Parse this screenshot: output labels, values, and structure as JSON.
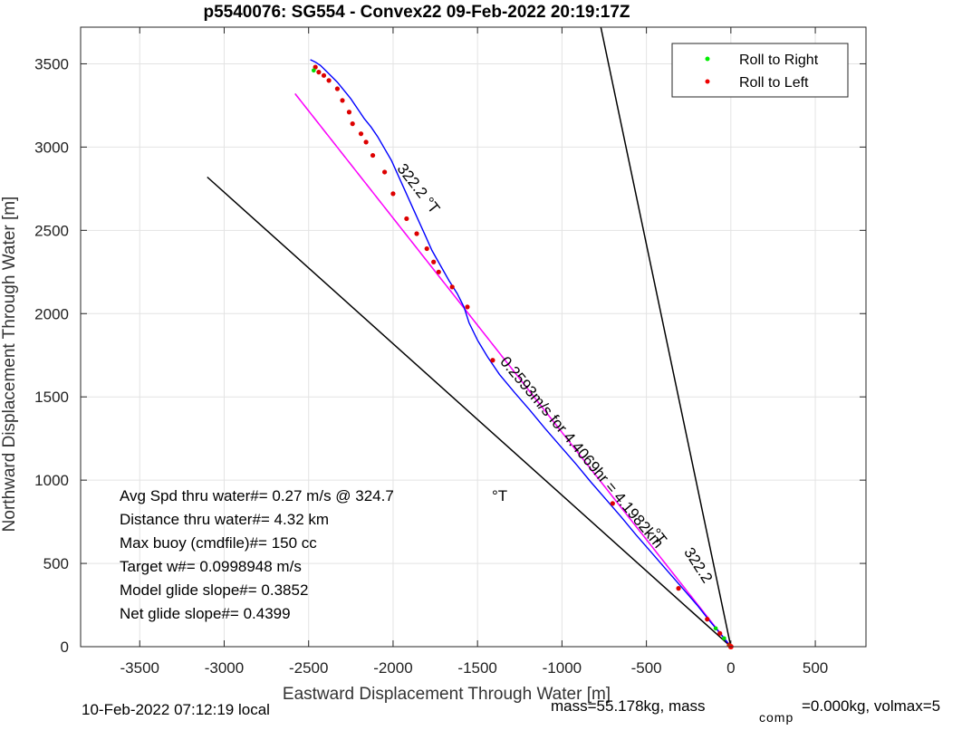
{
  "chart_data": {
    "type": "line",
    "title": "p5540076: SG554 - Convex22 09-Feb-2022 20:19:17Z",
    "xlabel": "Eastward Displacement Through Water [m]",
    "ylabel": "Northward Displacement Through Water [m]",
    "xlim": [
      -3850,
      800
    ],
    "ylim": [
      0,
      3720
    ],
    "xticks": [
      -3500,
      -3000,
      -2500,
      -2000,
      -1500,
      -1000,
      -500,
      0,
      500
    ],
    "yticks": [
      0,
      500,
      1000,
      1500,
      2000,
      2500,
      3000,
      3500
    ],
    "grid": true,
    "legend": {
      "position": "top-right",
      "entries": [
        {
          "label": "Roll to Right",
          "color": "#00ee00"
        },
        {
          "label": "Roll to Left",
          "color": "#ee0000"
        }
      ]
    },
    "series": [
      {
        "kind": "reference-line",
        "color": "#000000",
        "x": [
          0,
          -770
        ],
        "y": [
          0,
          3720
        ]
      },
      {
        "kind": "reference-line",
        "color": "#000000",
        "x": [
          0,
          -3100
        ],
        "y": [
          0,
          2820
        ]
      },
      {
        "kind": "reference-line",
        "color": "#000000",
        "dash": true,
        "x": [
          0,
          -2580
        ],
        "y": [
          0,
          3320
        ]
      },
      {
        "kind": "heading-line",
        "color": "#ff00ff",
        "x": [
          0,
          -2580
        ],
        "y": [
          0,
          3320
        ]
      },
      {
        "kind": "track",
        "color": "#0000ff",
        "x": [
          0,
          -60,
          -130,
          -200,
          -290,
          -380,
          -470,
          -560,
          -650,
          -740,
          -830,
          -920,
          -1010,
          -1100,
          -1190,
          -1280,
          -1370,
          -1440,
          -1500,
          -1550,
          -1580,
          -1620,
          -1670,
          -1720,
          -1770,
          -1810,
          -1850,
          -1890,
          -1930,
          -1970,
          -2010,
          -2050,
          -2090,
          -2130,
          -2170,
          -2210,
          -2250,
          -2290,
          -2330,
          -2370,
          -2400,
          -2430,
          -2460,
          -2490
        ],
        "y": [
          0,
          75,
          160,
          250,
          355,
          460,
          565,
          670,
          780,
          885,
          990,
          1100,
          1205,
          1310,
          1420,
          1525,
          1635,
          1740,
          1840,
          1945,
          2040,
          2120,
          2200,
          2290,
          2380,
          2470,
          2560,
          2650,
          2740,
          2830,
          2920,
          2990,
          3060,
          3120,
          3170,
          3230,
          3290,
          3340,
          3390,
          3430,
          3460,
          3490,
          3510,
          3525
        ]
      }
    ],
    "roll_left_points": {
      "x": [
        -10,
        -65,
        -140,
        -310,
        -700,
        -1410,
        -1560,
        -1650,
        -1730,
        -1760,
        -1800,
        -1860,
        -1920,
        -2000,
        -2050,
        -2120,
        -2160,
        -2190,
        -2240,
        -2260,
        -2300,
        -2330,
        -2380,
        -2410,
        -2440,
        -2460
      ],
      "y": [
        10,
        80,
        165,
        350,
        860,
        1720,
        2040,
        2160,
        2250,
        2310,
        2390,
        2480,
        2570,
        2720,
        2850,
        2950,
        3030,
        3080,
        3140,
        3210,
        3280,
        3350,
        3400,
        3430,
        3450,
        3480
      ]
    },
    "roll_right_points": {
      "x": [
        -5,
        -40,
        -90,
        -2470
      ],
      "y": [
        5,
        50,
        110,
        3460
      ]
    },
    "annotations": [
      {
        "text": "322.2 °T",
        "x": -1980,
        "y": 2870,
        "angle_deg": 52
      },
      {
        "text": "0.2593m/s for 4.4069hr = 4.1982km",
        "x": -1370,
        "y": 1710,
        "angle_deg": 50
      },
      {
        "text": "°T",
        "x": -480,
        "y": 680,
        "angle_deg": 52
      },
      {
        "text": "322.2",
        "x": -280,
        "y": 570,
        "angle_deg": 57
      }
    ],
    "info_lines": [
      {
        "text": "Avg Spd thru water#=  0.27 m/s @ 324.7",
        "suffix": "°T"
      },
      {
        "text": "Distance thru water#=  4.32 km"
      },
      {
        "text": "Max buoy (cmdfile)#= 150 cc"
      },
      {
        "text": "Target w#= 0.0998948 m/s"
      },
      {
        "text": "Model glide slope#= 0.3852"
      },
      {
        "text": "Net glide slope#= 0.4399"
      }
    ]
  },
  "footer": {
    "local_time": "10-Feb-2022 07:12:19 local",
    "mass_text": "mass=55.178kg, mass",
    "comp_sub": "comp",
    "mass_text2": "=0.000kg, volmax=5"
  }
}
